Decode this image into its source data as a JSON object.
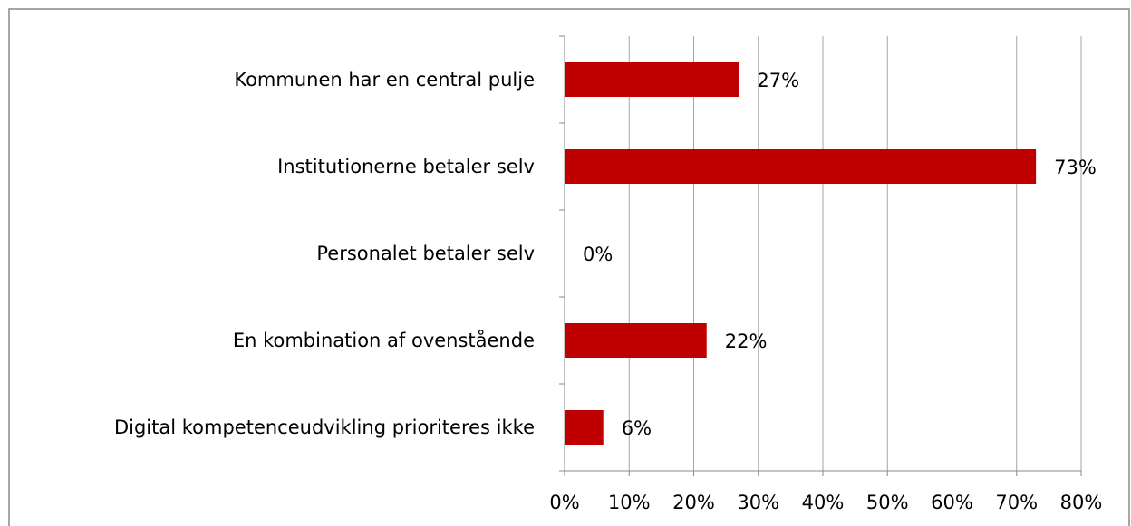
{
  "chart_data": {
    "type": "bar",
    "orientation": "horizontal",
    "categories": [
      "Kommunen har en central pulje",
      "Institutionerne betaler selv",
      "Personalet betaler selv",
      "En kombination af ovenstående",
      "Digital kompetenceudvikling prioriteres ikke"
    ],
    "values": [
      27,
      73,
      0,
      22,
      6
    ],
    "value_labels": [
      "27%",
      "73%",
      "0%",
      "22%",
      "6%"
    ],
    "color": "#c00000",
    "xlim": [
      0,
      80
    ],
    "xticks": [
      {
        "value": 0,
        "label": "0%"
      },
      {
        "value": 10,
        "label": "10%"
      },
      {
        "value": 20,
        "label": "20%"
      },
      {
        "value": 30,
        "label": "30%"
      },
      {
        "value": 40,
        "label": "40%"
      },
      {
        "value": 50,
        "label": "50%"
      },
      {
        "value": 60,
        "label": "60%"
      },
      {
        "value": 70,
        "label": "70%"
      },
      {
        "value": 80,
        "label": "80%"
      }
    ],
    "grid": true
  }
}
